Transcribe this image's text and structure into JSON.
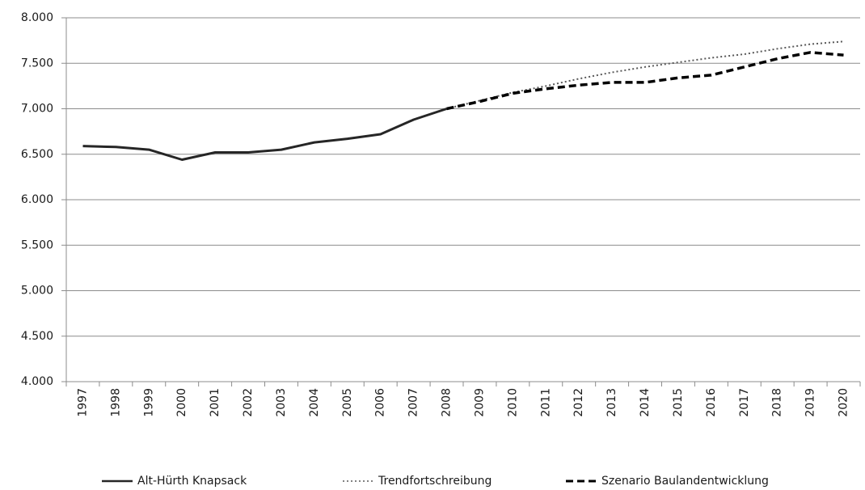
{
  "chart_data": {
    "type": "line",
    "categories": [
      "1997",
      "1998",
      "1999",
      "2000",
      "2001",
      "2002",
      "2003",
      "2004",
      "2005",
      "2006",
      "2007",
      "2008",
      "2009",
      "2010",
      "2011",
      "2012",
      "2013",
      "2014",
      "2015",
      "2016",
      "2017",
      "2018",
      "2019",
      "2020"
    ],
    "series": [
      {
        "name": "Alt-Hürth Knapsack",
        "color": "#262626",
        "style": "solid",
        "values": [
          6590,
          6580,
          6550,
          6440,
          6520,
          6520,
          6550,
          6630,
          6670,
          6720,
          6880,
          7000,
          null,
          null,
          null,
          null,
          null,
          null,
          null,
          null,
          null,
          null,
          null,
          null
        ]
      },
      {
        "name": "Trendfortschreibung",
        "color": "#595959",
        "style": "dotted",
        "values": [
          null,
          null,
          null,
          null,
          null,
          null,
          null,
          null,
          null,
          null,
          null,
          7000,
          7090,
          7180,
          7250,
          7330,
          7400,
          7460,
          7510,
          7560,
          7600,
          7660,
          7710,
          7740
        ]
      },
      {
        "name": "Szenario Baulandentwicklung",
        "color": "#000000",
        "style": "dashed",
        "values": [
          null,
          null,
          null,
          null,
          null,
          null,
          null,
          null,
          null,
          null,
          null,
          7000,
          7080,
          7170,
          7220,
          7260,
          7290,
          7290,
          7340,
          7370,
          7460,
          7550,
          7620,
          7590
        ]
      }
    ],
    "ylim": [
      4000,
      8000
    ],
    "yticks": [
      {
        "value": 4000,
        "label": "4.000"
      },
      {
        "value": 4500,
        "label": "4.500"
      },
      {
        "value": 5000,
        "label": "5.000"
      },
      {
        "value": 5500,
        "label": "5.500"
      },
      {
        "value": 6000,
        "label": "6.000"
      },
      {
        "value": 6500,
        "label": "6.500"
      },
      {
        "value": 7000,
        "label": "7.000"
      },
      {
        "value": 7500,
        "label": "7.500"
      },
      {
        "value": 8000,
        "label": "8.000"
      }
    ],
    "grid": true,
    "legend": "bottom"
  }
}
